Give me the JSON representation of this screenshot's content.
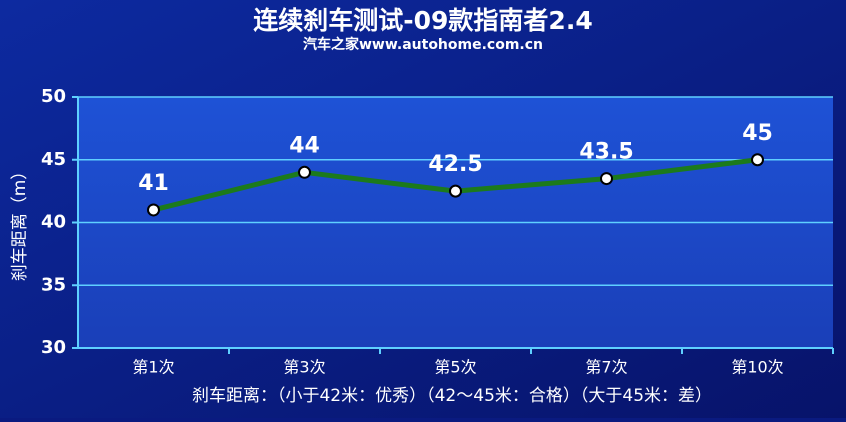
{
  "chart_data": {
    "type": "line",
    "title": "连续刹车测试-09款指南者2.4",
    "subtitle": "汽车之家www.autohome.com.cn",
    "y_label": "刹车距离（m）",
    "annotation": "刹车距离：（小于42米：优秀）（42～45米：合格）（大于45米：差）",
    "categories": [
      "第1次",
      "第3次",
      "第5次",
      "第7次",
      "第10次"
    ],
    "series": [
      {
        "name": "刹车距离",
        "color": "#1c7a1c",
        "values": [
          41,
          44,
          42.5,
          43.5,
          45
        ]
      }
    ],
    "ylim": [
      30,
      50
    ],
    "yticks": [
      30,
      35,
      40,
      45,
      50
    ],
    "grid": true
  }
}
